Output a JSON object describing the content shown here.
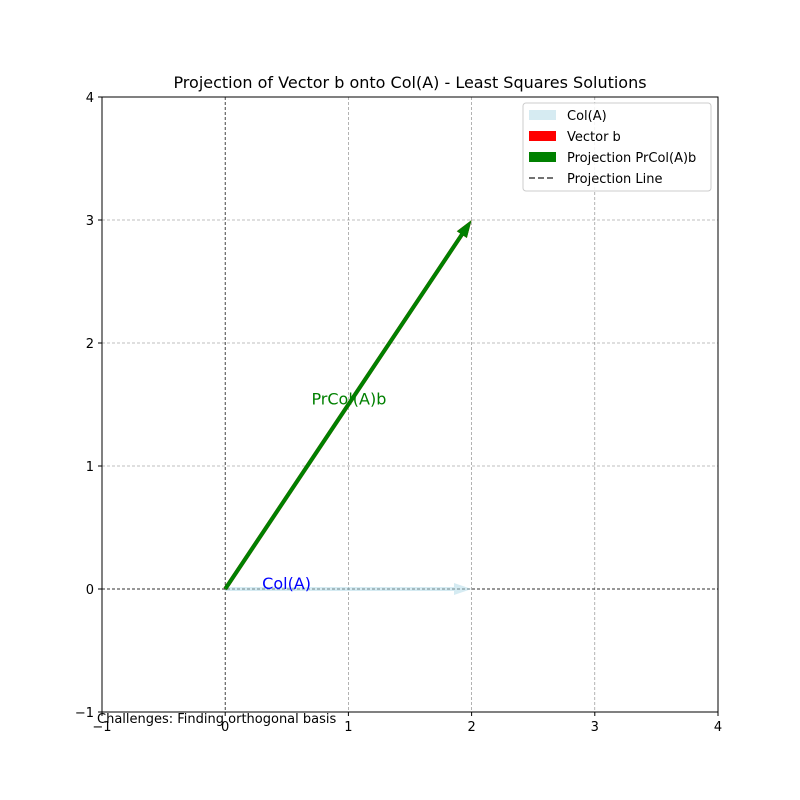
{
  "chart_data": {
    "type": "vector",
    "title": "Projection of Vector b onto Col(A) - Least Squares Solutions",
    "xlim": [
      -1,
      4
    ],
    "ylim": [
      -1,
      4
    ],
    "xticks": [
      -1,
      0,
      1,
      2,
      3,
      4
    ],
    "yticks": [
      -1,
      0,
      1,
      2,
      3,
      4
    ],
    "xtick_labels": [
      "−1",
      "0",
      "1",
      "2",
      "3",
      "4"
    ],
    "ytick_labels": [
      "−1",
      "0",
      "1",
      "2",
      "3",
      "4"
    ],
    "grid": true,
    "legend_position": "top-right",
    "vectors": [
      {
        "name": "Col(A)",
        "from": [
          0,
          0
        ],
        "to": [
          2,
          0
        ],
        "color": "#add8e6",
        "alpha": 0.5
      },
      {
        "name": "Vector b",
        "from": [
          0,
          0
        ],
        "to": [
          2,
          3
        ],
        "color": "#ff0000"
      },
      {
        "name": "Projection PrCol(A)b",
        "from": [
          0,
          0
        ],
        "to": [
          2,
          3
        ],
        "color": "#008000"
      }
    ],
    "projection_line": {
      "name": "Projection Line",
      "from": [
        2,
        3
      ],
      "to": [
        2,
        3
      ],
      "color": "#444444",
      "style": "dashed"
    },
    "annotations": [
      {
        "text": "PrCol(A)b",
        "at": [
          0.7,
          1.55
        ],
        "color": "#008000"
      },
      {
        "text": "Col(A)",
        "at": [
          0.3,
          0.05
        ],
        "color": "#0000ff"
      }
    ],
    "footnote": "Challenges: Finding orthogonal basis"
  }
}
